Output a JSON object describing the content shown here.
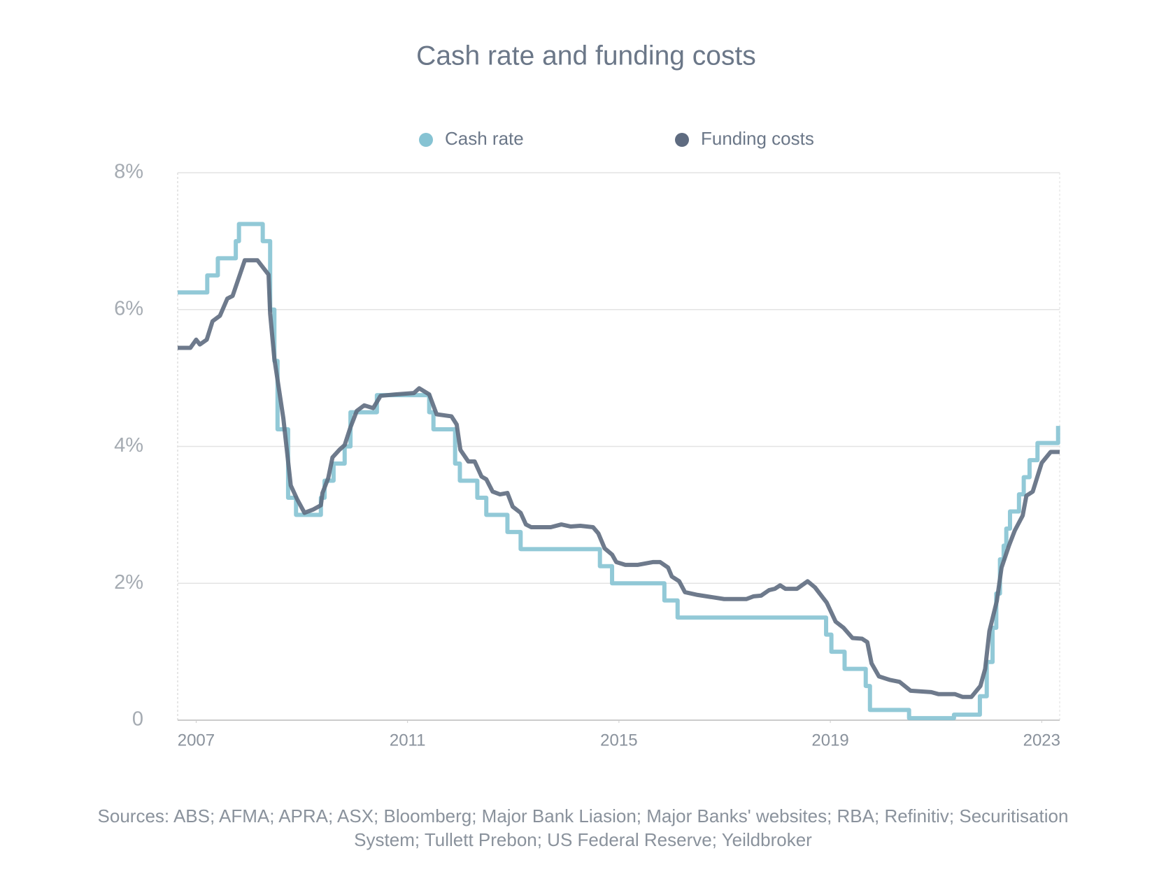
{
  "chart_data": {
    "type": "line",
    "title": "Cash rate and funding costs",
    "source": "Sources: ABS; AFMA; APRA; ASX; Bloomberg; Major Bank Liasion; Major Banks' websites; RBA; Refinitiv; Securitisation System; Tullett Prebon; US Federal Reserve; Yeildbroker",
    "xlim": [
      2006.65,
      2023.34
    ],
    "xticks": [
      2007,
      2011,
      2015,
      2019,
      2023
    ],
    "ylim": [
      0,
      8
    ],
    "yticks": [
      0,
      {
        "value": 2,
        "label": "2%"
      },
      {
        "value": 4,
        "label": "4%"
      },
      {
        "value": 6,
        "label": "6%"
      },
      {
        "value": 8,
        "label": "8%"
      }
    ],
    "grid": true,
    "legend": "top",
    "series": [
      {
        "name": "Cash rate",
        "color": "#86c3d3",
        "step": true,
        "x": [
          2006.65,
          2007.21,
          2007.41,
          2007.75,
          2007.81,
          2008.26,
          2008.4,
          2008.48,
          2008.54,
          2008.74,
          2008.89,
          2009.36,
          2009.43,
          2009.6,
          2009.81,
          2009.92,
          2010.42,
          2011.41,
          2011.49,
          2011.9,
          2011.99,
          2012.32,
          2012.49,
          2012.89,
          2013.14,
          2014.64,
          2014.87,
          2015.86,
          2016.11,
          2018.92,
          2019.02,
          2019.27,
          2019.67,
          2019.75,
          2020.49,
          2021.34,
          2021.83,
          2021.96,
          2022.07,
          2022.14,
          2022.21,
          2022.28,
          2022.33,
          2022.4,
          2022.57,
          2022.66,
          2022.77,
          2022.92,
          2023.31
        ],
        "values": [
          6.25,
          6.5,
          6.75,
          7.0,
          7.25,
          7.0,
          6.0,
          5.25,
          4.25,
          3.25,
          3.0,
          3.25,
          3.5,
          3.75,
          4.0,
          4.5,
          4.75,
          4.5,
          4.25,
          3.75,
          3.5,
          3.25,
          3.0,
          2.75,
          2.5,
          2.25,
          2.0,
          1.75,
          1.5,
          1.25,
          1.0,
          0.75,
          0.5,
          0.15,
          0.03,
          0.08,
          0.35,
          0.85,
          1.35,
          1.85,
          2.35,
          2.55,
          2.8,
          3.05,
          3.3,
          3.55,
          3.8,
          4.05,
          4.3
        ]
      },
      {
        "name": "Funding costs",
        "color": "#5e6b80",
        "x": [
          2006.65,
          2006.89,
          2007.0,
          2007.07,
          2007.2,
          2007.31,
          2007.45,
          2007.59,
          2007.69,
          2007.92,
          2008.16,
          2008.37,
          2008.4,
          2008.48,
          2008.65,
          2008.79,
          2008.91,
          2009.05,
          2009.22,
          2009.36,
          2009.39,
          2009.5,
          2009.58,
          2009.71,
          2009.81,
          2009.92,
          2010.04,
          2010.18,
          2010.35,
          2010.49,
          2010.77,
          2011.12,
          2011.22,
          2011.41,
          2011.55,
          2011.83,
          2011.93,
          2012.0,
          2012.15,
          2012.27,
          2012.4,
          2012.49,
          2012.61,
          2012.75,
          2012.89,
          2012.99,
          2013.14,
          2013.24,
          2013.34,
          2013.48,
          2013.71,
          2013.91,
          2014.09,
          2014.27,
          2014.51,
          2014.61,
          2014.73,
          2014.87,
          2014.95,
          2015.12,
          2015.36,
          2015.64,
          2015.78,
          2015.93,
          2016.0,
          2016.14,
          2016.25,
          2016.49,
          2016.99,
          2017.41,
          2017.55,
          2017.69,
          2017.84,
          2017.95,
          2018.05,
          2018.15,
          2018.37,
          2018.57,
          2018.71,
          2018.93,
          2019.1,
          2019.25,
          2019.42,
          2019.6,
          2019.7,
          2019.78,
          2019.92,
          2020.12,
          2020.31,
          2020.52,
          2020.91,
          2021.05,
          2021.36,
          2021.5,
          2021.67,
          2021.84,
          2021.93,
          2022.01,
          2022.15,
          2022.24,
          2022.38,
          2022.49,
          2022.64,
          2022.71,
          2022.83,
          2023.0,
          2023.17,
          2023.34
        ],
        "values": [
          5.44,
          5.44,
          5.56,
          5.49,
          5.56,
          5.83,
          5.91,
          6.16,
          6.2,
          6.72,
          6.72,
          6.51,
          5.94,
          5.28,
          4.41,
          3.43,
          3.23,
          3.03,
          3.08,
          3.14,
          3.32,
          3.54,
          3.84,
          3.95,
          4.02,
          4.28,
          4.52,
          4.6,
          4.56,
          4.74,
          4.76,
          4.78,
          4.85,
          4.76,
          4.47,
          4.44,
          4.32,
          3.95,
          3.78,
          3.78,
          3.56,
          3.52,
          3.34,
          3.3,
          3.32,
          3.12,
          3.03,
          2.86,
          2.82,
          2.82,
          2.82,
          2.86,
          2.83,
          2.84,
          2.82,
          2.73,
          2.51,
          2.42,
          2.31,
          2.27,
          2.27,
          2.31,
          2.31,
          2.23,
          2.1,
          2.03,
          1.87,
          1.83,
          1.77,
          1.77,
          1.81,
          1.82,
          1.9,
          1.92,
          1.97,
          1.92,
          1.92,
          2.03,
          1.94,
          1.72,
          1.44,
          1.35,
          1.2,
          1.19,
          1.14,
          0.83,
          0.64,
          0.59,
          0.56,
          0.43,
          0.41,
          0.38,
          0.38,
          0.34,
          0.34,
          0.5,
          0.75,
          1.3,
          1.74,
          2.23,
          2.55,
          2.77,
          2.99,
          3.28,
          3.34,
          3.76,
          3.92,
          3.92
        ]
      }
    ]
  }
}
